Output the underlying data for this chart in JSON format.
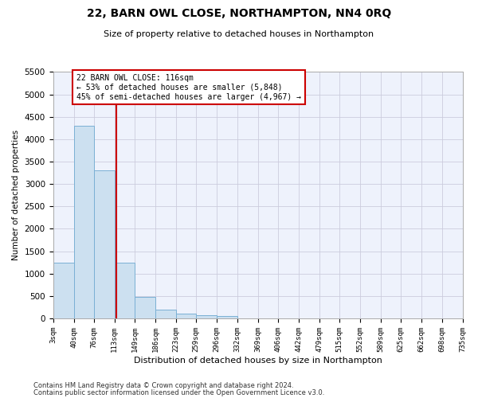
{
  "title": "22, BARN OWL CLOSE, NORTHAMPTON, NN4 0RQ",
  "subtitle": "Size of property relative to detached houses in Northampton",
  "xlabel": "Distribution of detached houses by size in Northampton",
  "ylabel": "Number of detached properties",
  "annotation_line1": "22 BARN OWL CLOSE: 116sqm",
  "annotation_line2": "← 53% of detached houses are smaller (5,848)",
  "annotation_line3": "45% of semi-detached houses are larger (4,967) →",
  "property_size": 116,
  "bin_edges": [
    3,
    40,
    76,
    113,
    149,
    186,
    223,
    259,
    296,
    332,
    369,
    406,
    442,
    479,
    515,
    552,
    589,
    625,
    662,
    698,
    735
  ],
  "bar_heights": [
    1250,
    4300,
    3300,
    1250,
    480,
    200,
    100,
    70,
    60,
    0,
    0,
    0,
    0,
    0,
    0,
    0,
    0,
    0,
    0,
    0
  ],
  "bar_color": "#cce0f0",
  "bar_edge_color": "#7ab0d4",
  "vline_color": "#cc0000",
  "vline_x": 116,
  "ylim": [
    0,
    5500
  ],
  "ytick_interval": 500,
  "grid_color": "#ccccdd",
  "background_color": "#eef2fc",
  "footer_line1": "Contains HM Land Registry data © Crown copyright and database right 2024.",
  "footer_line2": "Contains public sector information licensed under the Open Government Licence v3.0.",
  "annotation_box_color": "#ffffff",
  "annotation_box_edge": "#cc0000",
  "title_fontsize": 10,
  "subtitle_fontsize": 8,
  "ylabel_fontsize": 7.5,
  "xlabel_fontsize": 8,
  "ytick_fontsize": 7.5,
  "xtick_fontsize": 6.5,
  "annotation_fontsize": 7,
  "footer_fontsize": 6
}
